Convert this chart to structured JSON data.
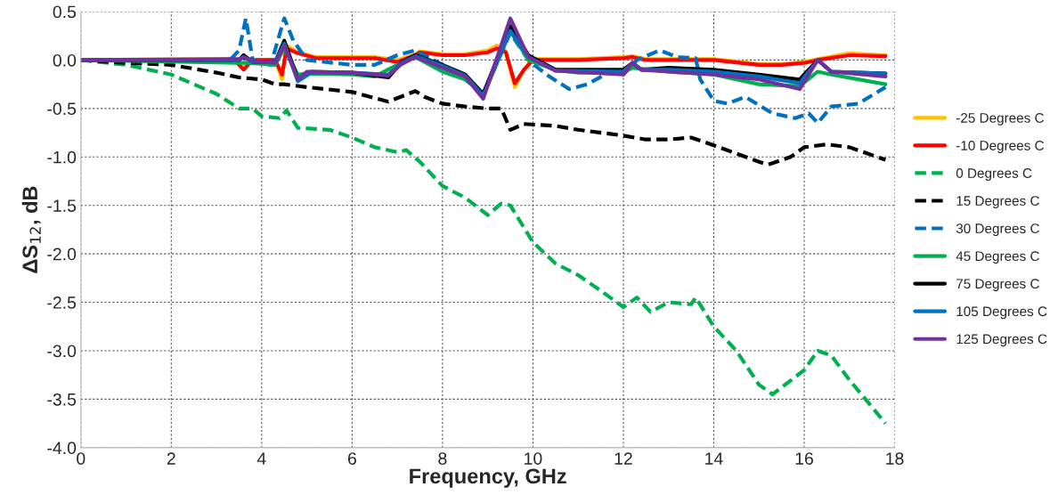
{
  "chart_data": {
    "type": "line",
    "xlabel": "Frequency, GHz",
    "ylabel": "ΔS$_{12}$, dB",
    "xlim": [
      0,
      18
    ],
    "xticks": [
      0,
      2,
      4,
      6,
      8,
      10,
      12,
      14,
      16,
      18
    ],
    "ylim": [
      -4.0,
      0.5
    ],
    "yticks": [
      {
        "value": 0.5,
        "label": "0.5"
      },
      {
        "value": 0.0,
        "label": "0.0"
      },
      {
        "value": -0.5,
        "label": "-0.5"
      },
      {
        "value": -1.0,
        "label": "-1.0"
      },
      {
        "value": -1.5,
        "label": "-1.5"
      },
      {
        "value": -2.0,
        "label": "-2.0"
      },
      {
        "value": -2.5,
        "label": "-2.5"
      },
      {
        "value": -3.0,
        "label": "-3.0"
      },
      {
        "value": -3.5,
        "label": "-3.5"
      },
      {
        "value": -4.0,
        "label": "-4.0"
      }
    ],
    "grid": true,
    "legend": "right",
    "marker": "none",
    "series": [
      {
        "name": "-25 Degrees C",
        "color": "#ffc000",
        "line_style": "solid",
        "x": [
          0,
          3.4,
          3.6,
          3.8,
          4.3,
          4.45,
          4.55,
          4.8,
          5.2,
          6.5,
          7,
          7.4,
          7.5,
          8,
          8.5,
          9,
          9.2,
          9.4,
          9.6,
          9.8,
          10,
          11,
          12,
          12.2,
          12.5,
          14,
          15,
          15.5,
          16,
          16.3,
          17,
          17.8
        ],
        "values": [
          0,
          0.01,
          -0.08,
          0.0,
          0.0,
          -0.2,
          0.15,
          0.08,
          0.03,
          0.03,
          0.0,
          0.06,
          0.09,
          0.06,
          0.06,
          0.1,
          0.15,
          0.09,
          -0.28,
          -0.1,
          0.01,
          0.01,
          0.03,
          0.04,
          0.01,
          0.01,
          -0.04,
          -0.04,
          -0.02,
          0.01,
          0.07,
          0.05
        ]
      },
      {
        "name": "-10 Degrees C",
        "color": "#ff0000",
        "line_style": "solid",
        "x": [
          0,
          3.4,
          3.6,
          3.8,
          4.3,
          4.45,
          4.55,
          4.8,
          5.2,
          6.5,
          7,
          7.4,
          7.5,
          8,
          8.5,
          9,
          9.2,
          9.4,
          9.6,
          9.8,
          10,
          11,
          12,
          12.2,
          12.5,
          14,
          15,
          15.5,
          16,
          16.3,
          17,
          17.8
        ],
        "values": [
          0,
          0.0,
          -0.1,
          0.0,
          0.0,
          -0.15,
          0.12,
          0.07,
          0.02,
          0.02,
          -0.02,
          0.05,
          0.08,
          0.05,
          0.05,
          0.08,
          0.12,
          0.08,
          -0.24,
          -0.1,
          0.0,
          0.0,
          0.02,
          0.03,
          0.0,
          0.0,
          -0.05,
          -0.05,
          -0.03,
          0.0,
          0.05,
          0.04
        ]
      },
      {
        "name": "0 Degrees C",
        "color": "#00b050",
        "line_style": "dashed",
        "x": [
          0,
          1,
          2,
          3,
          3.5,
          3.8,
          4,
          4.4,
          4.55,
          4.8,
          5.5,
          6,
          6.5,
          7,
          7.2,
          7.5,
          8,
          8.5,
          9,
          9.3,
          9.5,
          10,
          10.5,
          11,
          11.5,
          12,
          12.3,
          12.6,
          13,
          13.5,
          13.6,
          14,
          14.5,
          15,
          15.3,
          16,
          16.3,
          16.6,
          17,
          17.8
        ],
        "values": [
          0,
          -0.05,
          -0.15,
          -0.35,
          -0.5,
          -0.5,
          -0.58,
          -0.6,
          -0.52,
          -0.7,
          -0.72,
          -0.8,
          -0.9,
          -0.95,
          -0.93,
          -1.05,
          -1.3,
          -1.42,
          -1.6,
          -1.48,
          -1.5,
          -1.88,
          -2.1,
          -2.22,
          -2.38,
          -2.55,
          -2.45,
          -2.6,
          -2.5,
          -2.52,
          -2.45,
          -2.75,
          -3.0,
          -3.35,
          -3.45,
          -3.2,
          -3.0,
          -3.05,
          -3.3,
          -3.75
        ]
      },
      {
        "name": "15 Degrees C",
        "color": "#000000",
        "line_style": "dashed",
        "x": [
          0,
          1,
          2,
          3,
          3.5,
          4,
          4.3,
          4.5,
          5,
          6,
          6.8,
          7.4,
          7.6,
          8,
          8.5,
          9,
          9.3,
          9.5,
          9.8,
          10.5,
          11,
          12,
          12.5,
          13,
          13.5,
          14,
          15,
          15.2,
          15.7,
          16,
          16.5,
          17,
          17.8
        ],
        "values": [
          0,
          -0.03,
          -0.05,
          -0.13,
          -0.18,
          -0.2,
          -0.25,
          -0.25,
          -0.28,
          -0.33,
          -0.43,
          -0.32,
          -0.38,
          -0.45,
          -0.48,
          -0.5,
          -0.5,
          -0.72,
          -0.66,
          -0.68,
          -0.72,
          -0.78,
          -0.82,
          -0.82,
          -0.8,
          -0.88,
          -1.05,
          -1.08,
          -1.0,
          -0.9,
          -0.87,
          -0.9,
          -1.03
        ]
      },
      {
        "name": "30 Degrees C",
        "color": "#0070c0",
        "line_style": "dashed",
        "x": [
          0,
          3.3,
          3.5,
          3.65,
          3.8,
          4.2,
          4.5,
          4.7,
          5,
          6,
          6.5,
          7,
          7.4,
          8,
          8.5,
          8.9,
          9.5,
          9.9,
          10.3,
          10.8,
          11.2,
          11.8,
          12.0,
          12.3,
          12.8,
          13.2,
          13.6,
          13.7,
          14.0,
          14.3,
          14.7,
          15.3,
          15.8,
          16.1,
          16.3,
          16.6,
          17.2,
          17.8
        ],
        "values": [
          0,
          0.0,
          0.1,
          0.43,
          0.0,
          -0.05,
          0.43,
          0.2,
          0.0,
          -0.05,
          -0.05,
          0.05,
          0.1,
          -0.05,
          -0.2,
          -0.35,
          0.28,
          0.0,
          -0.15,
          -0.3,
          -0.25,
          -0.1,
          -0.15,
          0.0,
          0.1,
          0.03,
          0.02,
          -0.2,
          -0.42,
          -0.45,
          -0.38,
          -0.55,
          -0.6,
          -0.55,
          -0.65,
          -0.48,
          -0.45,
          -0.28
        ]
      },
      {
        "name": "45 Degrees C",
        "color": "#00b050",
        "line_style": "solid",
        "x": [
          0,
          3.5,
          3.7,
          4.3,
          4.5,
          4.8,
          5,
          6,
          6.5,
          7,
          7.4,
          8,
          8.5,
          8.9,
          9.5,
          9.9,
          10.5,
          11,
          12,
          12.2,
          13,
          14,
          15,
          15.9,
          16.3,
          16.6,
          17.8
        ],
        "values": [
          0,
          -0.03,
          -0.03,
          -0.05,
          0.12,
          -0.15,
          -0.14,
          -0.15,
          -0.17,
          -0.05,
          0.03,
          -0.12,
          -0.2,
          -0.35,
          0.3,
          0.0,
          -0.1,
          -0.13,
          -0.13,
          -0.08,
          -0.12,
          -0.15,
          -0.25,
          -0.27,
          -0.12,
          -0.15,
          -0.25
        ]
      },
      {
        "name": "75 Degrees C",
        "color": "#000000",
        "line_style": "solid",
        "x": [
          0,
          3.5,
          3.6,
          3.8,
          4.3,
          4.5,
          4.8,
          5.1,
          6,
          6.8,
          7.1,
          7.4,
          8,
          8.5,
          8.9,
          9.5,
          9.9,
          10.5,
          12,
          12.2,
          12.4,
          13,
          14,
          15,
          15.9,
          16.3,
          16.6,
          17.8
        ],
        "values": [
          0,
          0.0,
          0.05,
          -0.02,
          -0.02,
          0.2,
          -0.2,
          -0.12,
          -0.13,
          -0.18,
          -0.02,
          0.05,
          -0.05,
          -0.15,
          -0.35,
          0.35,
          0.05,
          -0.1,
          -0.1,
          -0.03,
          -0.1,
          -0.08,
          -0.1,
          -0.15,
          -0.2,
          0.0,
          -0.12,
          -0.14
        ]
      },
      {
        "name": "105 Degrees C",
        "color": "#0070c0",
        "line_style": "solid",
        "x": [
          0,
          3.5,
          3.6,
          3.8,
          4.3,
          4.5,
          4.8,
          5.1,
          6,
          6.8,
          7.1,
          7.4,
          8,
          8.5,
          8.9,
          9.5,
          9.9,
          10.5,
          12,
          12.2,
          12.4,
          13,
          14,
          15,
          15.9,
          16.3,
          16.6,
          17.8
        ],
        "values": [
          0,
          0.0,
          0.03,
          -0.02,
          -0.02,
          0.17,
          -0.22,
          -0.13,
          -0.13,
          -0.15,
          -0.03,
          0.04,
          -0.06,
          -0.16,
          -0.37,
          0.3,
          0.03,
          -0.11,
          -0.12,
          -0.03,
          -0.1,
          -0.1,
          -0.12,
          -0.17,
          -0.24,
          0.0,
          -0.12,
          -0.14
        ]
      },
      {
        "name": "125 Degrees C",
        "color": "#7030a0",
        "line_style": "solid",
        "x": [
          0,
          3.5,
          3.6,
          3.8,
          4.3,
          4.5,
          4.8,
          5.0,
          6,
          6.8,
          7.1,
          7.4,
          8,
          8.5,
          8.9,
          9.5,
          9.9,
          10.5,
          12,
          12.2,
          12.4,
          13,
          14,
          15,
          15.9,
          16.3,
          16.6,
          17.8
        ],
        "values": [
          0,
          0.01,
          0.03,
          -0.01,
          -0.03,
          0.15,
          -0.2,
          -0.12,
          -0.13,
          -0.16,
          -0.04,
          0.03,
          -0.08,
          -0.17,
          -0.4,
          0.43,
          0.03,
          -0.11,
          -0.15,
          -0.03,
          -0.1,
          -0.12,
          -0.15,
          -0.2,
          -0.3,
          0.0,
          -0.12,
          -0.17
        ]
      }
    ]
  }
}
